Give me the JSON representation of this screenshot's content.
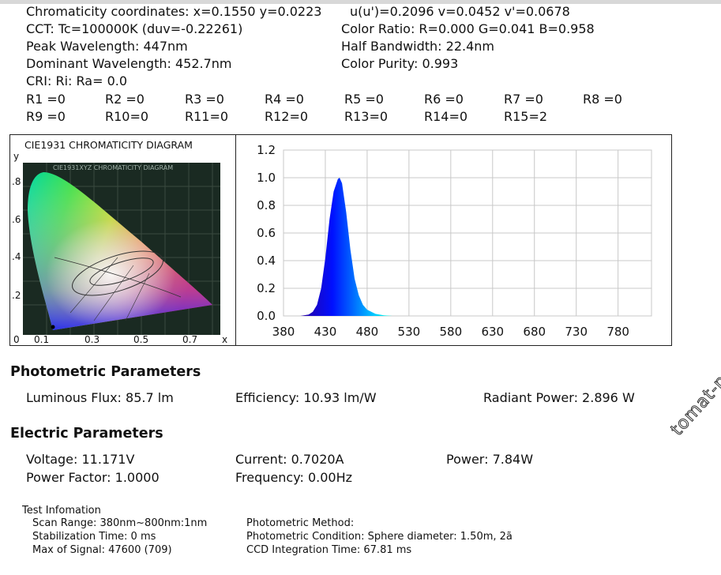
{
  "header": {
    "chromaticity": "Chromaticity coordinates: x=0.1550 y=0.0223",
    "uv": "u(u')=0.2096 v=0.0452 v'=0.0678",
    "cct": "CCT: Tc=100000K (duv=-0.22261)",
    "color_ratio": "Color Ratio: R=0.000  G=0.041  B=0.958",
    "peak": "Peak Wavelength: 447nm",
    "half_bw": "Half Bandwidth: 22.4nm",
    "dominant": "Dominant Wavelength: 452.7nm",
    "purity": "Color Purity: 0.993",
    "cri": "CRI: Ri: Ra=  0.0",
    "r_values": [
      "R1 =0",
      "R2 =0",
      "R3 =0",
      "R4 =0",
      "R5 =0",
      "R6 =0",
      "R7 =0",
      "R8 =0",
      "R9 =0",
      "R10=0",
      "R11=0",
      "R12=0",
      "R13=0",
      "R14=0",
      "R15=2"
    ]
  },
  "cie": {
    "title": "CIE1931 CHROMATICITY DIAGRAM",
    "inner_title": "CIE1931XYZ CHROMATICITY DIAGRAM",
    "y_axis_label": "y",
    "x_axis_label": "x",
    "y_ticks": [
      ".8",
      ".6",
      ".4",
      ".2"
    ],
    "x_ticks": [
      "0",
      "0.1",
      "0.3",
      "0.5",
      "0.7"
    ],
    "point": {
      "x": 0.155,
      "y": 0.0223
    }
  },
  "chart_data": {
    "type": "area",
    "title": "",
    "xlabel": "",
    "ylabel": "",
    "xlim": [
      380,
      800
    ],
    "ylim": [
      0,
      1.2
    ],
    "x_ticks": [
      "380",
      "430",
      "480",
      "530",
      "580",
      "630",
      "680",
      "730",
      "780"
    ],
    "y_ticks": [
      "0.0",
      "0.2",
      "0.4",
      "0.6",
      "0.8",
      "1.0",
      "1.2"
    ],
    "grid": true,
    "series": [
      {
        "x": [
          380,
          400,
          410,
          415,
          420,
          425,
          430,
          435,
          440,
          445,
          447,
          450,
          455,
          460,
          465,
          470,
          475,
          480,
          490,
          500,
          510,
          520,
          800
        ],
        "y": [
          0,
          0,
          0.01,
          0.03,
          0.08,
          0.2,
          0.42,
          0.7,
          0.9,
          0.99,
          1.0,
          0.96,
          0.75,
          0.48,
          0.27,
          0.15,
          0.08,
          0.045,
          0.015,
          0.004,
          0,
          0,
          0
        ]
      }
    ]
  },
  "photometric": {
    "heading": "Photometric Parameters",
    "flux": "Luminous Flux:  85.7 lm",
    "efficiency": "Efficiency: 10.93 lm/W",
    "radiant": "Radiant Power: 2.896 W"
  },
  "electric": {
    "heading": "Electric Parameters",
    "voltage": "Voltage: 11.171V",
    "current": "Current: 0.7020A",
    "power": "Power: 7.84W",
    "pf": "Power Factor: 1.0000",
    "frequency": "Frequency: 0.00Hz"
  },
  "test": {
    "heading": "Test Infomation",
    "scan": "Scan Range: 380nm~800nm:1nm",
    "stab": "Stabilization Time: 0 ms",
    "max": "Max of Signal: 47600 (709)",
    "method": "Photometric Method:",
    "condition": "Photometric Condition: Sphere diameter: 1.50m, 2ã",
    "ccd": "CCD Integration Time: 67.81 ms"
  },
  "watermark": "tomat-pomidor.com"
}
